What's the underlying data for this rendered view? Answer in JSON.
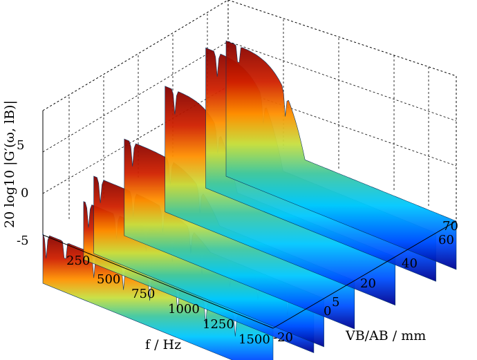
{
  "chart_data": {
    "type": "area",
    "title": "",
    "zlabel": "20 log10 |G′(ω, lB)|",
    "xlabel": "f / Hz",
    "ylabel": "VB/AB / mm",
    "x_ticks": [
      "250",
      "500",
      "750",
      "1000",
      "1250",
      "1500"
    ],
    "y_ticks": [
      "-20",
      "0",
      "5",
      "20",
      "40",
      "60",
      "70"
    ],
    "z_ticks": [
      "-5",
      "0",
      "5"
    ],
    "xlim": [
      100,
      1500
    ],
    "ylim": [
      -20,
      70
    ],
    "zlim": [
      -5,
      10
    ],
    "colormap": [
      "#00008f",
      "#0050ff",
      "#00c8ff",
      "#40c8a0",
      "#c8e040",
      "#ff9000",
      "#d02000",
      "#800000"
    ],
    "grid": true,
    "series": [
      {
        "y": -20,
        "resonance_hz": [
          120,
          235,
          410,
          590,
          750,
          920,
          1090,
          1270
        ],
        "plateau_db": 0.2
      },
      {
        "y": 0,
        "resonance_hz": [
          130,
          300,
          480,
          640,
          820,
          990,
          1160,
          1340
        ],
        "plateau_db": 1.0
      },
      {
        "y": 5,
        "resonance_hz": [
          140,
          340,
          520,
          690
        ],
        "plateau_db": 3.0
      },
      {
        "y": 20,
        "resonance_hz": [
          150,
          380,
          560
        ],
        "plateau_db": 5.0
      },
      {
        "y": 40,
        "resonance_hz": [
          160,
          420
        ],
        "plateau_db": 8.0
      },
      {
        "y": 60,
        "resonance_hz": [
          170,
          450
        ],
        "plateau_db": 9.5
      },
      {
        "y": 70,
        "resonance_hz": [
          175,
          460
        ],
        "plateau_db": 9.0
      }
    ]
  }
}
